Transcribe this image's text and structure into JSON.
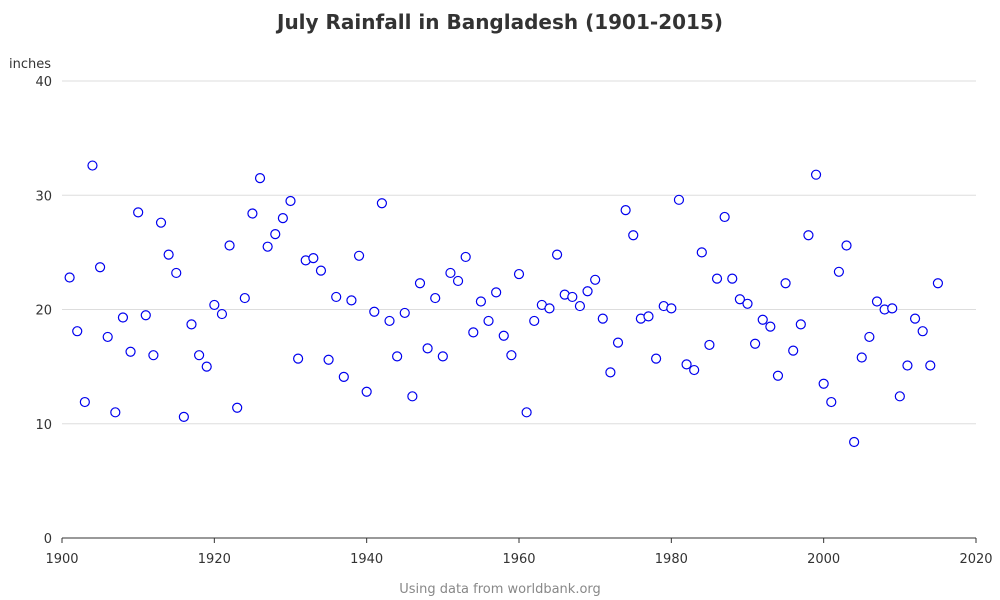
{
  "page": {
    "title": "July Rainfall in Bangladesh (1901-2015)",
    "footnote": "Using data from worldbank.org"
  },
  "chart_data": {
    "type": "scatter",
    "title": "July Rainfall in Bangladesh (1901-2015)",
    "xlabel": "",
    "ylabel": "inches",
    "xlim": [
      1900,
      2020
    ],
    "ylim": [
      0,
      40
    ],
    "x_ticks": [
      1900,
      1920,
      1940,
      1960,
      1980,
      2000,
      2020
    ],
    "y_ticks": [
      0,
      10,
      20,
      30,
      40
    ],
    "grid": "horizontal",
    "marker": "hollow circle",
    "marker_color": "#0000ee",
    "grid_color": "#dddddd",
    "axis_color": "#333333",
    "x": [
      1901,
      1902,
      1903,
      1904,
      1905,
      1906,
      1907,
      1908,
      1909,
      1910,
      1911,
      1912,
      1913,
      1914,
      1915,
      1916,
      1917,
      1918,
      1919,
      1920,
      1921,
      1922,
      1923,
      1924,
      1925,
      1926,
      1927,
      1928,
      1929,
      1930,
      1931,
      1932,
      1933,
      1934,
      1935,
      1936,
      1937,
      1938,
      1939,
      1940,
      1941,
      1942,
      1943,
      1944,
      1945,
      1946,
      1947,
      1948,
      1949,
      1950,
      1951,
      1952,
      1953,
      1954,
      1955,
      1956,
      1957,
      1958,
      1959,
      1960,
      1961,
      1962,
      1963,
      1964,
      1965,
      1966,
      1967,
      1968,
      1969,
      1970,
      1971,
      1972,
      1973,
      1974,
      1975,
      1976,
      1977,
      1978,
      1979,
      1980,
      1981,
      1982,
      1983,
      1984,
      1985,
      1986,
      1987,
      1988,
      1989,
      1990,
      1991,
      1992,
      1993,
      1994,
      1995,
      1996,
      1997,
      1998,
      1999,
      2000,
      2001,
      2002,
      2003,
      2004,
      2005,
      2006,
      2007,
      2008,
      2009,
      2010,
      2011,
      2012,
      2013,
      2014,
      2015
    ],
    "y": [
      22.8,
      18.1,
      11.9,
      32.6,
      23.7,
      17.6,
      11.0,
      19.3,
      16.3,
      28.5,
      19.5,
      16.0,
      27.6,
      24.8,
      23.2,
      10.6,
      18.7,
      16.0,
      15.0,
      20.4,
      19.6,
      25.6,
      11.4,
      21.0,
      28.4,
      31.5,
      25.5,
      26.6,
      28.0,
      29.5,
      15.7,
      24.3,
      24.5,
      23.4,
      15.6,
      21.1,
      14.1,
      20.8,
      24.7,
      12.8,
      19.8,
      29.3,
      19.0,
      15.9,
      19.7,
      12.4,
      22.3,
      16.6,
      21.0,
      15.9,
      23.2,
      22.5,
      24.6,
      18.0,
      20.7,
      19.0,
      21.5,
      17.7,
      16.0,
      23.1,
      11.0,
      19.0,
      20.4,
      20.1,
      24.8,
      21.3,
      21.1,
      20.3,
      21.6,
      22.6,
      19.2,
      14.5,
      17.1,
      28.7,
      26.5,
      19.2,
      19.4,
      15.7,
      20.3,
      20.1,
      29.6,
      15.2,
      14.7,
      25.0,
      16.9,
      22.7,
      28.1,
      22.7,
      20.9,
      20.5,
      17.0,
      19.1,
      18.5,
      14.2,
      22.3,
      16.4,
      18.7,
      26.5,
      31.8,
      13.5,
      11.9,
      23.3,
      25.6,
      8.4,
      15.8,
      17.6,
      20.7,
      20.0,
      20.1,
      12.4,
      15.1,
      19.2,
      18.1,
      15.1,
      22.3
    ]
  }
}
